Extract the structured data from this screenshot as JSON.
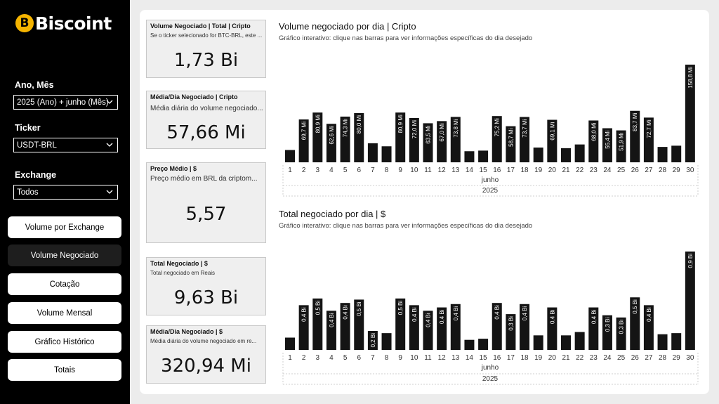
{
  "brand": {
    "name": "Biscoint",
    "coin_symbol": "B"
  },
  "filters": {
    "period": {
      "label": "Ano, Mês",
      "value": "2025 (Ano) + junho (Mês)"
    },
    "ticker": {
      "label": "Ticker",
      "value": "USDT-BRL"
    },
    "exchange": {
      "label": "Exchange",
      "value": "Todos"
    }
  },
  "nav": [
    {
      "label": "Volume por Exchange",
      "active": false
    },
    {
      "label": "Volume Negociado",
      "active": true
    },
    {
      "label": "Cotação",
      "active": false
    },
    {
      "label": "Volume Mensal",
      "active": false
    },
    {
      "label": "Gráfico Histórico",
      "active": false
    },
    {
      "label": "Totais",
      "active": false
    }
  ],
  "cards": {
    "volume_total": {
      "title": "Volume Negociado | Total | Cripto",
      "subtitle": "Se o ticker selecionado for BTC-BRL, este ...",
      "value": "1,73 Bi"
    },
    "media_cripto": {
      "title": "Média/Dia Negociado | Cripto",
      "subtitle": "Média diária do volume negociado...",
      "value": "57,66 Mi"
    },
    "preco_medio": {
      "title": "Preço Médio | $",
      "subtitle": "Preço médio em BRL da criptom...",
      "value": "5,57"
    },
    "total_negociado": {
      "title": "Total Negociado | $",
      "subtitle": "Total negociado em Reais",
      "value": "9,63 Bi"
    },
    "media_reais": {
      "title": "Média/Dia Negociado | $",
      "subtitle": "Média diária do volume negociado em re...",
      "value": "320,94 Mi"
    }
  },
  "charts": {
    "crypto": {
      "title": "Volume negociado por dia | Cripto",
      "subtitle": "Gráfico interativo: clique nas barras para ver informações específicas do dia desejado"
    },
    "reais": {
      "title": "Total negociado por dia | $",
      "subtitle": "Gráfico interativo: clique nas barras para ver informações específicas do dia desejado"
    }
  },
  "colors": {
    "bar": "#141414",
    "accent": "#f5b400"
  },
  "chart_data": [
    {
      "type": "bar",
      "title": "Volume negociado por dia | Cripto",
      "categories": [
        "1",
        "2",
        "3",
        "4",
        "5",
        "6",
        "7",
        "8",
        "9",
        "10",
        "11",
        "12",
        "13",
        "14",
        "15",
        "16",
        "17",
        "18",
        "19",
        "20",
        "21",
        "22",
        "23",
        "24",
        "25",
        "26",
        "27",
        "28",
        "29",
        "30"
      ],
      "x_group_labels": [
        "junho",
        "2025"
      ],
      "values": [
        20,
        69.7,
        80.9,
        62.6,
        74.3,
        80.0,
        31,
        26,
        80.9,
        72.0,
        63.5,
        67.0,
        73.8,
        18,
        19,
        75.2,
        58.7,
        73.7,
        24,
        69.1,
        23,
        29,
        68.0,
        55.4,
        51.9,
        83.7,
        72.7,
        25,
        27,
        158.8
      ],
      "data_labels": [
        "",
        "69,7 Mi",
        "80,9 Mi",
        "62,6 Mi",
        "74,3 Mi",
        "80,0 Mi",
        "",
        "",
        "80,9 Mi",
        "72,0 Mi",
        "63,5 Mi",
        "67,0 Mi",
        "73,8 Mi",
        "",
        "",
        "75,2 Mi",
        "58,7 Mi",
        "73,7 Mi",
        "",
        "69,1 Mi",
        "",
        "",
        "68,0 Mi",
        "55,4 Mi",
        "51,9 Mi",
        "83,7 Mi",
        "72,7 Mi",
        "",
        "",
        "158,8 Mi"
      ]
    },
    {
      "type": "bar",
      "title": "Total negociado por dia | $",
      "categories": [
        "1",
        "2",
        "3",
        "4",
        "5",
        "6",
        "7",
        "8",
        "9",
        "10",
        "11",
        "12",
        "13",
        "14",
        "15",
        "16",
        "17",
        "18",
        "19",
        "20",
        "21",
        "22",
        "23",
        "24",
        "25",
        "26",
        "27",
        "28",
        "29",
        "30"
      ],
      "x_group_labels": [
        "junho",
        "2025"
      ],
      "values": [
        0.11,
        0.4,
        0.46,
        0.35,
        0.42,
        0.45,
        0.17,
        0.15,
        0.46,
        0.4,
        0.35,
        0.38,
        0.41,
        0.09,
        0.1,
        0.42,
        0.32,
        0.41,
        0.13,
        0.38,
        0.13,
        0.16,
        0.38,
        0.31,
        0.29,
        0.47,
        0.4,
        0.14,
        0.15,
        0.88
      ],
      "data_labels": [
        "",
        "0,4 Bi",
        "0,5 Bi",
        "0,4 Bi",
        "0,4 Bi",
        "0,5 Bi",
        "0,2 Bi",
        "",
        "0,5 Bi",
        "0,4 Bi",
        "0,4 Bi",
        "0,4 Bi",
        "0,4 Bi",
        "",
        "",
        "0,4 Bi",
        "0,3 Bi",
        "0,4 Bi",
        "",
        "0,4 Bi",
        "",
        "",
        "0,4 Bi",
        "0,3 Bi",
        "0,3 Bi",
        "0,5 Bi",
        "0,4 Bi",
        "",
        "",
        "0,9 Bi"
      ]
    }
  ]
}
